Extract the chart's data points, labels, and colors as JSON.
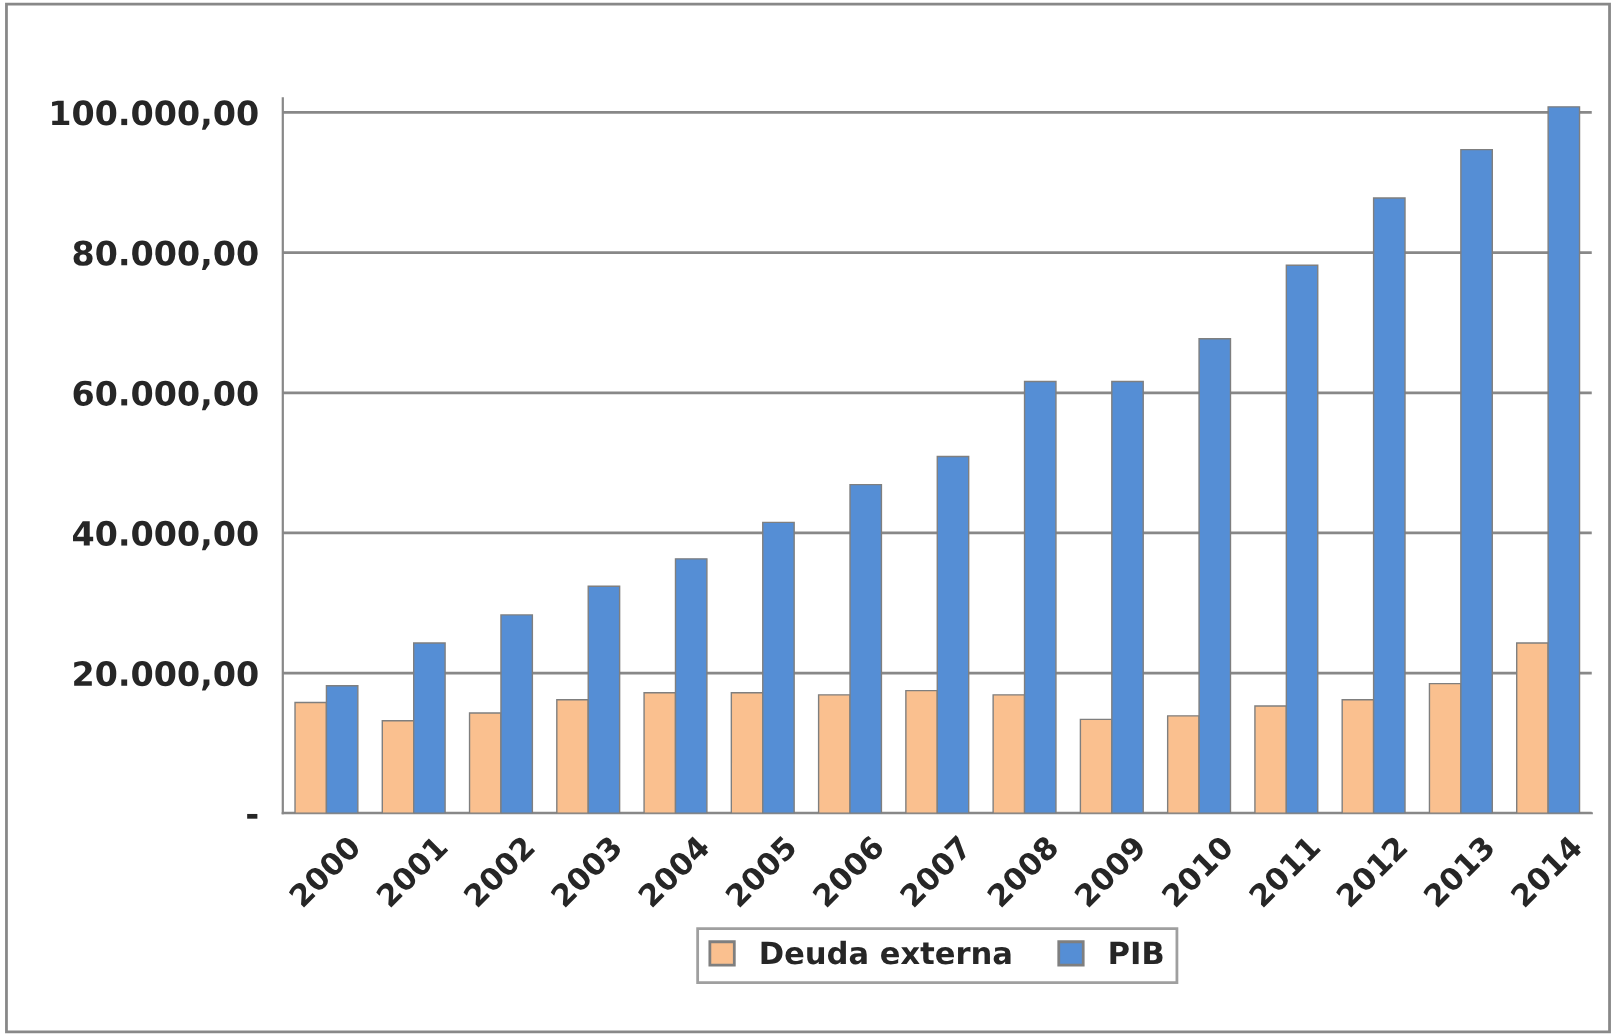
{
  "chart_data": {
    "type": "bar",
    "categories": [
      "2000",
      "2001",
      "2002",
      "2003",
      "2004",
      "2005",
      "2006",
      "2007",
      "2008",
      "2009",
      "2010",
      "2011",
      "2012",
      "2013",
      "2014"
    ],
    "series": [
      {
        "name": "Deuda externa",
        "color": "#fac08f",
        "values": [
          15800,
          13200,
          14300,
          16200,
          17200,
          17200,
          16900,
          17500,
          16900,
          13400,
          13900,
          15300,
          16200,
          18500,
          24300
        ]
      },
      {
        "name": "PIB",
        "color": "#558ed5",
        "values": [
          18200,
          24300,
          28300,
          32400,
          36300,
          41500,
          46900,
          50900,
          61600,
          61600,
          67700,
          78200,
          87800,
          94700,
          100800
        ]
      }
    ],
    "ylim": [
      0,
      102000
    ],
    "yticks": [
      {
        "value": 0,
        "label": "-"
      },
      {
        "value": 20000,
        "label": "20.000,00"
      },
      {
        "value": 40000,
        "label": "40.000,00"
      },
      {
        "value": 60000,
        "label": "60.000,00"
      },
      {
        "value": 80000,
        "label": "80.000,00"
      },
      {
        "value": 100000,
        "label": "100.000,00"
      }
    ],
    "grid": "y",
    "legend": "bottom"
  }
}
